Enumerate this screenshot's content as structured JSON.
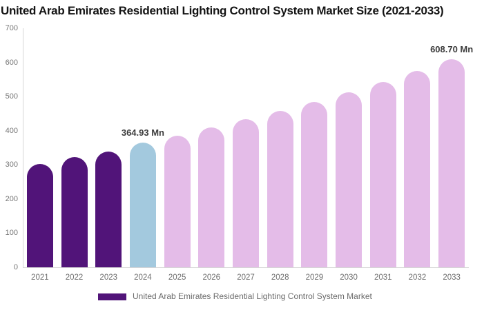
{
  "title": "United Arab Emirates Residential Lighting Control System Market Size (2021-2033)",
  "colors": {
    "historical_bar": "#511479",
    "current_year_bar": "#A3C9DE",
    "forecast_bar": "#E4BCE8",
    "axis_line": "#d6d6d6",
    "y_tick_text": "#757575",
    "x_tick_text": "#6e6e6e",
    "data_label_text": "#3c3c3c",
    "legend_text": "#6b6b6b",
    "title_text": "#141414",
    "background": "#ffffff"
  },
  "chart_data": {
    "type": "bar",
    "title": "United Arab Emirates Residential Lighting Control System Market Size (2021-2033)",
    "unit": "Mn",
    "categories": [
      "2021",
      "2022",
      "2023",
      "2024",
      "2025",
      "2026",
      "2027",
      "2028",
      "2029",
      "2030",
      "2031",
      "2032",
      "2033"
    ],
    "values": [
      303,
      322,
      340,
      364.93,
      386,
      409,
      433,
      458,
      485,
      513,
      543,
      575,
      608.7
    ],
    "bar_colors": [
      "#511479",
      "#511479",
      "#511479",
      "#A3C9DE",
      "#E4BCE8",
      "#E4BCE8",
      "#E4BCE8",
      "#E4BCE8",
      "#E4BCE8",
      "#E4BCE8",
      "#E4BCE8",
      "#E4BCE8",
      "#E4BCE8"
    ],
    "data_labels": [
      {
        "index": 3,
        "text": "364.93 Mn"
      },
      {
        "index": 12,
        "text": "608.70 Mn"
      }
    ],
    "xlabel": "",
    "ylabel": "",
    "ylim": [
      0,
      700
    ],
    "yticks": [
      0,
      100,
      200,
      300,
      400,
      500,
      600,
      700
    ],
    "grid": false,
    "legend_position": "bottom"
  },
  "legend": {
    "label": "United Arab Emirates Residential Lighting Control System Market",
    "swatch_color": "#511479"
  }
}
